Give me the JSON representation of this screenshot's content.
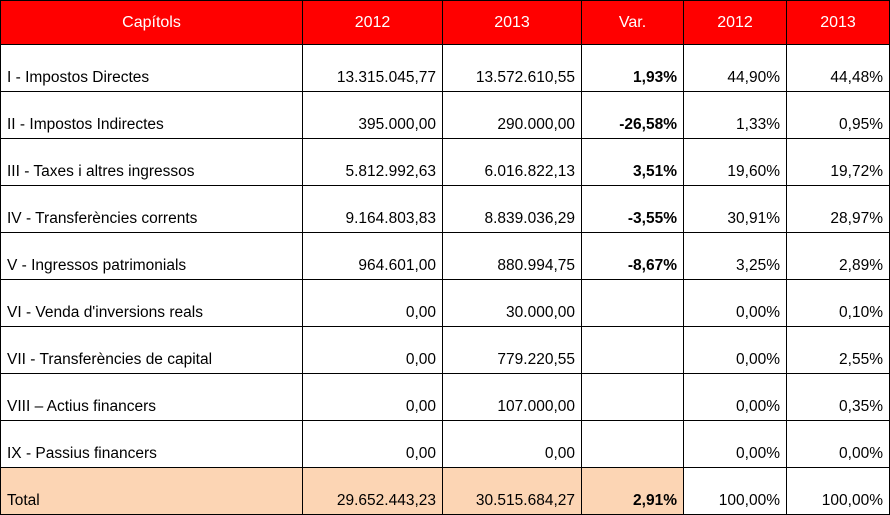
{
  "header": {
    "chapters": "Capítols",
    "y2012": "2012",
    "y2013": "2013",
    "var": "Var.",
    "pct2012": "2012",
    "pct2013": "2013"
  },
  "rows": [
    {
      "label": "I - Impostos Directes",
      "v2012": "13.315.045,77",
      "v2013": "13.572.610,55",
      "var": "1,93%",
      "p2012": "44,90%",
      "p2013": "44,48%"
    },
    {
      "label": "II - Impostos Indirectes",
      "v2012": "395.000,00",
      "v2013": "290.000,00",
      "var": "-26,58%",
      "p2012": "1,33%",
      "p2013": "0,95%"
    },
    {
      "label": "III - Taxes i altres ingressos",
      "v2012": "5.812.992,63",
      "v2013": "6.016.822,13",
      "var": "3,51%",
      "p2012": "19,60%",
      "p2013": "19,72%"
    },
    {
      "label": "IV - Transferències corrents",
      "v2012": "9.164.803,83",
      "v2013": "8.839.036,29",
      "var": "-3,55%",
      "p2012": "30,91%",
      "p2013": "28,97%"
    },
    {
      "label": "V - Ingressos patrimonials",
      "v2012": "964.601,00",
      "v2013": "880.994,75",
      "var": "-8,67%",
      "p2012": "3,25%",
      "p2013": "2,89%"
    },
    {
      "label": "VI - Venda d'inversions reals",
      "v2012": "0,00",
      "v2013": "30.000,00",
      "var": "",
      "p2012": "0,00%",
      "p2013": "0,10%"
    },
    {
      "label": "VII - Transferències de capital",
      "v2012": "0,00",
      "v2013": "779.220,55",
      "var": "",
      "p2012": "0,00%",
      "p2013": "2,55%"
    },
    {
      "label": "VIII – Actius financers",
      "v2012": "0,00",
      "v2013": "107.000,00",
      "var": "",
      "p2012": "0,00%",
      "p2013": "0,35%"
    },
    {
      "label": "IX - Passius financers",
      "v2012": "0,00",
      "v2013": "0,00",
      "var": "",
      "p2012": "0,00%",
      "p2013": "0,00%"
    }
  ],
  "total": {
    "label": "Total",
    "v2012": "29.652.443,23",
    "v2013": "30.515.684,27",
    "var": "2,91%",
    "p2012": "100,00%",
    "p2013": "100,00%"
  },
  "colors": {
    "header_bg": "#ff0000",
    "header_text": "#ffffff",
    "total_highlight": "#fcd5b4"
  }
}
